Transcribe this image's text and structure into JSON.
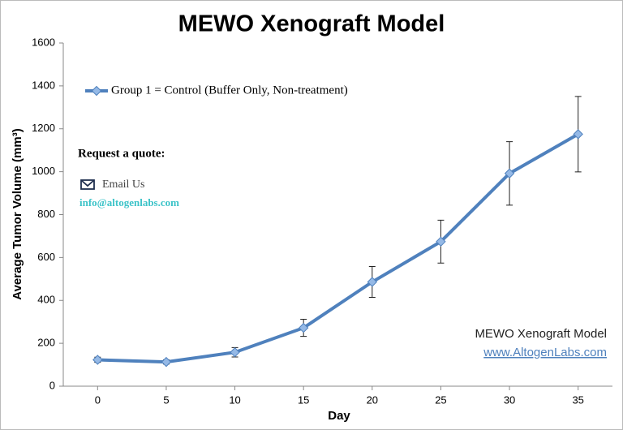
{
  "chart_data": {
    "type": "line",
    "title": "MEWO Xenograft Model",
    "xlabel": "Day",
    "ylabel": "Average Tumor Volume (mm³)",
    "x": [
      0,
      5,
      10,
      15,
      20,
      25,
      30,
      35
    ],
    "series": [
      {
        "name": "Group 1 = Control (Buffer Only, Non-treatment)",
        "color": "#4f81bd",
        "marker_color": "#95b9e6",
        "values": [
          123,
          113,
          158,
          272,
          486,
          674,
          992,
          1175
        ],
        "errors": [
          12,
          10,
          22,
          40,
          72,
          100,
          148,
          176
        ]
      }
    ],
    "xlim": [
      -2.5,
      37.5
    ],
    "xticks": [
      0,
      5,
      10,
      15,
      20,
      25,
      30,
      35
    ],
    "ylim": [
      0,
      1600
    ],
    "yticks": [
      0,
      200,
      400,
      600,
      800,
      1000,
      1200,
      1400,
      1600
    ],
    "legend": "top-left",
    "annotations": {
      "quote": "Request a quote:",
      "email_label": "Email Us",
      "email": "info@altogenlabs.com",
      "watermark_title": "MEWO Xenograft Model",
      "watermark_url": "www.AltogenLabs.com"
    }
  }
}
